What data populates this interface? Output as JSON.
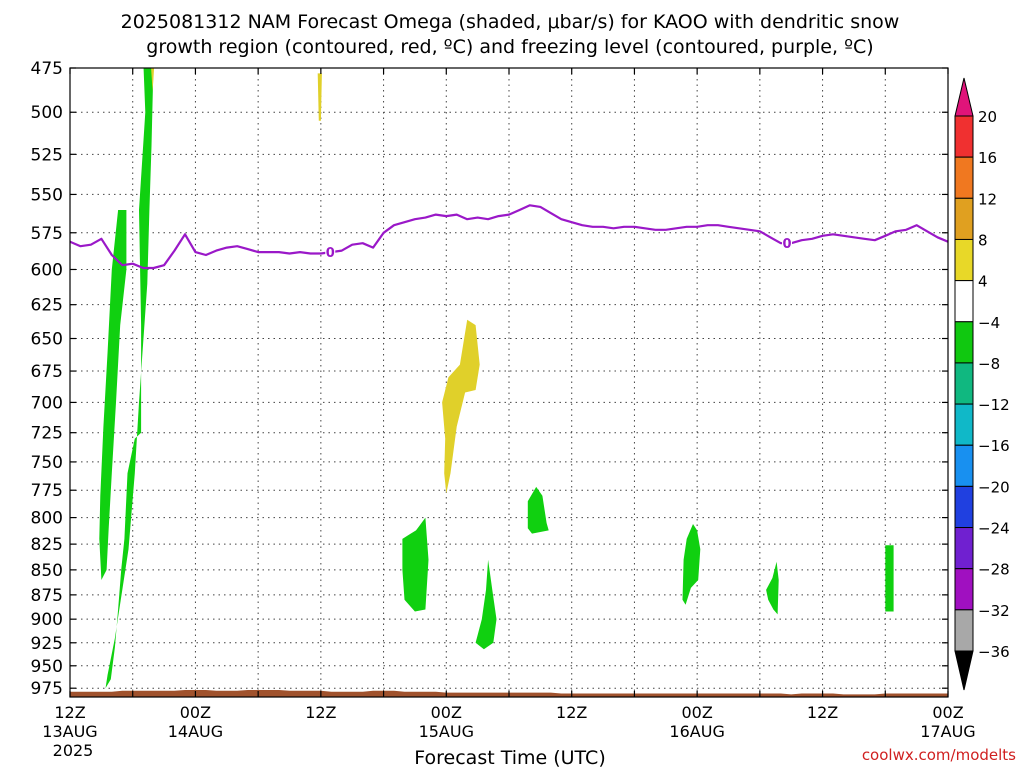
{
  "title_line1": "2025081312 NAM Forecast Omega (shaded, μbar/s) for KAOO with dendritic snow",
  "title_line2": "growth region (contoured, red, ºC) and freezing level (contoured, purple, ºC)",
  "credit": "coolwx.com/modelts",
  "chart_data": {
    "type": "heatmap",
    "xlabel": "Forecast Time (UTC)",
    "x_range_hours": [
      0,
      84
    ],
    "x_ticks": [
      {
        "h": 0,
        "label": "12Z",
        "sub": "13AUG",
        "sub2": "2025"
      },
      {
        "h": 6,
        "label": "",
        "sub": "",
        "sub2": ""
      },
      {
        "h": 12,
        "label": "00Z",
        "sub": "14AUG",
        "sub2": ""
      },
      {
        "h": 18,
        "label": "",
        "sub": "",
        "sub2": ""
      },
      {
        "h": 24,
        "label": "12Z",
        "sub": "",
        "sub2": ""
      },
      {
        "h": 30,
        "label": "",
        "sub": "",
        "sub2": ""
      },
      {
        "h": 36,
        "label": "00Z",
        "sub": "15AUG",
        "sub2": ""
      },
      {
        "h": 42,
        "label": "",
        "sub": "",
        "sub2": ""
      },
      {
        "h": 48,
        "label": "12Z",
        "sub": "",
        "sub2": ""
      },
      {
        "h": 54,
        "label": "",
        "sub": "",
        "sub2": ""
      },
      {
        "h": 60,
        "label": "00Z",
        "sub": "16AUG",
        "sub2": ""
      },
      {
        "h": 66,
        "label": "",
        "sub": "",
        "sub2": ""
      },
      {
        "h": 72,
        "label": "12Z",
        "sub": "",
        "sub2": ""
      },
      {
        "h": 78,
        "label": "",
        "sub": "",
        "sub2": ""
      },
      {
        "h": 84,
        "label": "00Z",
        "sub": "17AUG",
        "sub2": ""
      }
    ],
    "y_levels_mb": [
      475,
      500,
      525,
      550,
      575,
      600,
      625,
      650,
      675,
      700,
      725,
      750,
      775,
      800,
      825,
      850,
      875,
      900,
      925,
      950,
      975
    ],
    "y_range_mb": [
      475,
      985
    ],
    "y_scale": "log-pressure (inverted)",
    "grid": "dotted",
    "colorbar": {
      "levels": [
        20,
        16,
        12,
        8,
        4,
        -4,
        -8,
        -12,
        -16,
        -20,
        -24,
        -28,
        -32,
        -36
      ],
      "colors": [
        "#e0147a",
        "#f03030",
        "#f07820",
        "#e0a020",
        "#e8d828",
        "#ffffff",
        "#10c810",
        "#10b880",
        "#10b8c8",
        "#1890f0",
        "#2040e0",
        "#7020d0",
        "#a010c0",
        "#a8a8a8",
        "#000000"
      ]
    },
    "omega_regions": [
      {
        "value_class": "-4 to -8",
        "color": "#10d010",
        "points": [
          [
            3.4,
            975
          ],
          [
            3.9,
            965
          ],
          [
            4.3,
            930
          ],
          [
            4.6,
            890
          ],
          [
            4.9,
            850
          ],
          [
            5.2,
            820
          ],
          [
            5.5,
            760
          ],
          [
            6.2,
            730
          ],
          [
            6.8,
            725
          ],
          [
            6.8,
            640
          ],
          [
            6.6,
            560
          ],
          [
            7.2,
            500
          ],
          [
            7.0,
            470
          ],
          [
            7.8,
            468
          ],
          [
            8.0,
            470
          ],
          [
            7.8,
            520
          ],
          [
            7.6,
            560
          ],
          [
            7.4,
            610
          ],
          [
            6.6,
            700
          ],
          [
            6.2,
            760
          ],
          [
            5.6,
            830
          ],
          [
            5.0,
            870
          ],
          [
            4.3,
            920
          ],
          [
            3.6,
            960
          ]
        ]
      },
      {
        "value_class": "-4 to -8",
        "color": "#10d010",
        "points": [
          [
            3.0,
            860
          ],
          [
            2.8,
            820
          ],
          [
            2.9,
            780
          ],
          [
            3.2,
            720
          ],
          [
            3.6,
            660
          ],
          [
            4.0,
            600
          ],
          [
            4.6,
            560
          ],
          [
            5.4,
            560
          ],
          [
            5.4,
            600
          ],
          [
            4.8,
            640
          ],
          [
            4.4,
            700
          ],
          [
            4.0,
            760
          ],
          [
            3.7,
            810
          ],
          [
            3.5,
            850
          ]
        ]
      },
      {
        "value_class": "-4 to -8",
        "color": "#10d010",
        "points": [
          [
            31.8,
            820
          ],
          [
            32.6,
            815
          ],
          [
            33.1,
            812
          ],
          [
            33.4,
            808
          ],
          [
            34.0,
            800
          ],
          [
            34.3,
            840
          ],
          [
            34.0,
            890
          ],
          [
            33.0,
            892
          ],
          [
            32.0,
            880
          ],
          [
            31.8,
            850
          ]
        ]
      },
      {
        "value_class": "-4 to -8",
        "color": "#10d010",
        "points": [
          [
            38.8,
            925
          ],
          [
            39.4,
            900
          ],
          [
            39.8,
            870
          ],
          [
            40.0,
            840
          ],
          [
            40.4,
            870
          ],
          [
            40.8,
            900
          ],
          [
            40.5,
            925
          ],
          [
            39.6,
            932
          ]
        ]
      },
      {
        "value_class": "-4 to -8",
        "color": "#10d010",
        "points": [
          [
            43.8,
            785
          ],
          [
            44.6,
            772
          ],
          [
            45.2,
            780
          ],
          [
            45.6,
            805
          ],
          [
            45.8,
            812
          ],
          [
            44.2,
            815
          ],
          [
            43.8,
            810
          ]
        ]
      },
      {
        "value_class": "-4 to -8",
        "color": "#10d010",
        "points": [
          [
            58.6,
            880
          ],
          [
            58.7,
            840
          ],
          [
            59.0,
            820
          ],
          [
            59.6,
            806
          ],
          [
            60.0,
            812
          ],
          [
            60.3,
            830
          ],
          [
            60.1,
            860
          ],
          [
            59.4,
            868
          ],
          [
            58.9,
            885
          ]
        ]
      },
      {
        "value_class": "-4 to -8",
        "color": "#10d010",
        "points": [
          [
            66.6,
            870
          ],
          [
            67.2,
            858
          ],
          [
            67.6,
            842
          ],
          [
            67.8,
            860
          ],
          [
            67.7,
            895
          ],
          [
            67.3,
            890
          ],
          [
            66.8,
            880
          ]
        ]
      },
      {
        "value_class": "-4 to -8",
        "color": "#10d010",
        "points": [
          [
            78.0,
            826
          ],
          [
            78.8,
            826
          ],
          [
            78.8,
            892
          ],
          [
            78.0,
            892
          ]
        ]
      },
      {
        "value_class": "4 to 8",
        "color": "#e0d02a",
        "points": [
          [
            35.9,
            730
          ],
          [
            35.6,
            700
          ],
          [
            36.2,
            680
          ],
          [
            37.3,
            670
          ],
          [
            38.0,
            636
          ],
          [
            38.8,
            640
          ],
          [
            39.2,
            670
          ],
          [
            38.8,
            690
          ],
          [
            37.8,
            692
          ],
          [
            37.0,
            720
          ],
          [
            36.4,
            760
          ],
          [
            36.0,
            778
          ],
          [
            35.8,
            760
          ]
        ]
      },
      {
        "value_class": "4 to 8",
        "color": "#e0d02a",
        "points": [
          [
            7.7,
            470
          ],
          [
            8.1,
            470
          ],
          [
            7.9,
            488
          ]
        ]
      },
      {
        "value_class": "4 to 8",
        "color": "#e0d02a",
        "points": [
          [
            23.7,
            478
          ],
          [
            24.1,
            478
          ],
          [
            24.0,
            505
          ],
          [
            23.8,
            505
          ]
        ]
      }
    ],
    "freezing_level": {
      "color": "#9a18c8",
      "label": "0",
      "label_hours": [
        24.9,
        68.6
      ],
      "hours": [
        0,
        1,
        2,
        3,
        4,
        5,
        6,
        7,
        8,
        9,
        10,
        11,
        12,
        13,
        14,
        15,
        16,
        17,
        18,
        19,
        20,
        21,
        22,
        23,
        24,
        25,
        26,
        27,
        28,
        29,
        30,
        31,
        32,
        33,
        34,
        35,
        36,
        37,
        38,
        39,
        40,
        41,
        42,
        43,
        44,
        45,
        46,
        47,
        48,
        49,
        50,
        51,
        52,
        53,
        54,
        55,
        56,
        57,
        58,
        59,
        60,
        61,
        62,
        63,
        64,
        65,
        66,
        67,
        68,
        69,
        70,
        71,
        72,
        73,
        74,
        75,
        76,
        77,
        78,
        79,
        80,
        81,
        82,
        83,
        84
      ],
      "pressure_mb": [
        581,
        584,
        583,
        579,
        590,
        597,
        596,
        599,
        599,
        597,
        587,
        576,
        588,
        590,
        587,
        585,
        584,
        586,
        588,
        588,
        588,
        589,
        588,
        589,
        589,
        588,
        587,
        583,
        582,
        585,
        575,
        570,
        568,
        566,
        565,
        563,
        564,
        563,
        566,
        565,
        566,
        564,
        563,
        560,
        557,
        558,
        562,
        566,
        568,
        570,
        571,
        571,
        572,
        571,
        571,
        572,
        573,
        573,
        572,
        571,
        571,
        570,
        570,
        571,
        572,
        573,
        574,
        578,
        582,
        582,
        580,
        579,
        577,
        576,
        577,
        578,
        579,
        580,
        577,
        574,
        573,
        570,
        574,
        578,
        581
      ]
    },
    "ground_pressure_mb": [
      979,
      979,
      979,
      979,
      979,
      978,
      978,
      978,
      978,
      978,
      978,
      977,
      977,
      977,
      978,
      978,
      978,
      977,
      977,
      977,
      977,
      978,
      978,
      978,
      978,
      979,
      979,
      979,
      979,
      978,
      978,
      978,
      979,
      979,
      979,
      979,
      980,
      980,
      980,
      980,
      980,
      980,
      980,
      980,
      980,
      980,
      980,
      981,
      981,
      981,
      981,
      981,
      981,
      981,
      981,
      981,
      981,
      981,
      981,
      981,
      981,
      981,
      981,
      981,
      981,
      981,
      981,
      981,
      981,
      982,
      981,
      981,
      981,
      981,
      982,
      982,
      982,
      982,
      981,
      981,
      981,
      981,
      981,
      981,
      981
    ]
  }
}
